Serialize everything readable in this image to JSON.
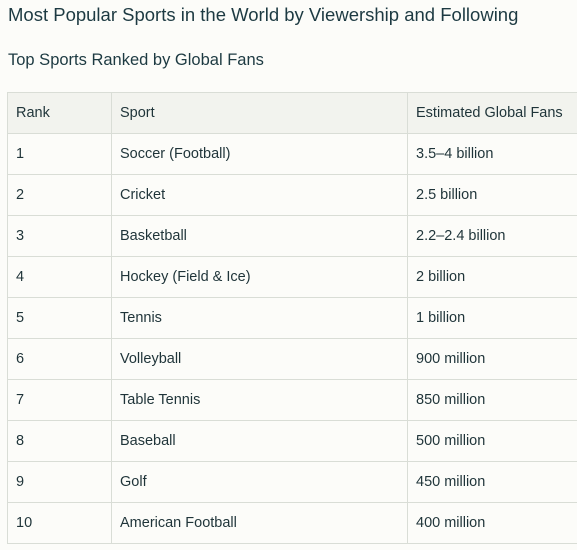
{
  "page": {
    "title": "Most Popular Sports in the World by Viewership and Following",
    "section_title": "Top Sports Ranked by Global Fans"
  },
  "table": {
    "headers": [
      "Rank",
      "Sport",
      "Estimated Global Fans"
    ],
    "rows": [
      [
        "1",
        "Soccer (Football)",
        "3.5–4 billion"
      ],
      [
        "2",
        "Cricket",
        "2.5 billion"
      ],
      [
        "3",
        "Basketball",
        "2.2–2.4 billion"
      ],
      [
        "4",
        "Hockey (Field & Ice)",
        "2 billion"
      ],
      [
        "5",
        "Tennis",
        "1 billion"
      ],
      [
        "6",
        "Volleyball",
        "900 million"
      ],
      [
        "7",
        "Table Tennis",
        "850 million"
      ],
      [
        "8",
        "Baseball",
        "500 million"
      ],
      [
        "9",
        "Golf",
        "450 million"
      ],
      [
        "10",
        "American Football",
        "400 million"
      ]
    ]
  }
}
